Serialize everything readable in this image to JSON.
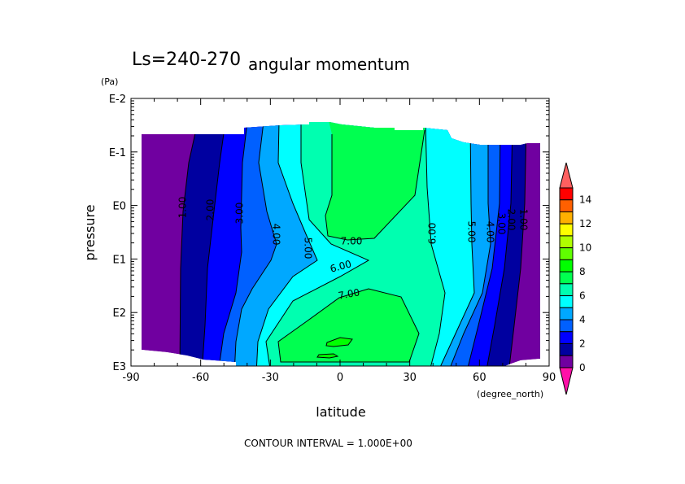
{
  "chart_data": {
    "type": "contour",
    "title_left": "Ls=240-270",
    "title": "angular momentum",
    "xlabel": "latitude",
    "xunits": "(degree_north)",
    "ylabel": "pressure",
    "yunits": "(Pa)",
    "xlim": [
      -90,
      90
    ],
    "x_ticks": [
      "-90",
      "-60",
      "-30",
      "0",
      "30",
      "60",
      "90"
    ],
    "y_scale": "log",
    "y_ticks": [
      "E-2",
      "E-1",
      "E0",
      "E1",
      "E2",
      "E3"
    ],
    "footer": "CONTOUR INTERVAL = 1.000E+00",
    "contour_interval": 1.0,
    "contour_labels": [
      "1.00",
      "2.00",
      "3.00",
      "4.00",
      "5.00",
      "6.00",
      "7.00",
      "7.00",
      "6.00",
      "5.00",
      "4.00",
      "3.00",
      "2.00",
      "1.00"
    ],
    "colorbar": {
      "tick_labels": [
        "0",
        "2",
        "4",
        "6",
        "8",
        "10",
        "12",
        "14"
      ],
      "levels": [
        0,
        1,
        2,
        3,
        4,
        5,
        6,
        7,
        8,
        9,
        10,
        11,
        12,
        13,
        14,
        15
      ],
      "colors": [
        "#7000a0",
        "#0000a0",
        "#0000ff",
        "#0060ff",
        "#00a8ff",
        "#00ffff",
        "#00ffb0",
        "#00ff50",
        "#00ff00",
        "#60ff00",
        "#b0ff00",
        "#ffff00",
        "#ffb000",
        "#ff6000",
        "#ff0000"
      ],
      "under_color": "#ff10a8",
      "over_color": "#ff6060"
    }
  }
}
